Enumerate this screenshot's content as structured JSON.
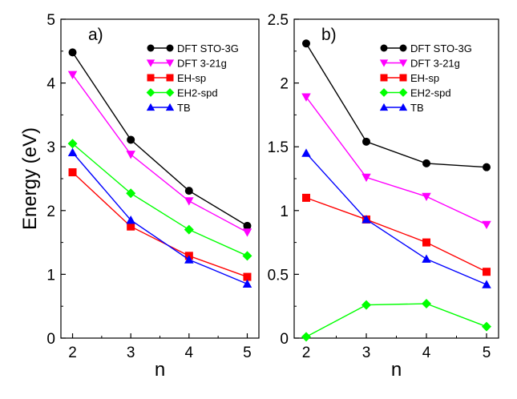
{
  "chart_data": [
    {
      "panel_label": "a)",
      "type": "line",
      "xlabel": "n",
      "ylabel": "Energy (eV)",
      "x": [
        2,
        3,
        4,
        5
      ],
      "xlim": [
        1.8,
        5.2
      ],
      "ylim": [
        0,
        5
      ],
      "yticks": [
        "0",
        "1",
        "2",
        "3",
        "4",
        "5"
      ],
      "xticks": [
        "2",
        "3",
        "4",
        "5"
      ],
      "legend_position": "top-right",
      "series": [
        {
          "name": "DFT STO-3G",
          "color": "#000000",
          "marker": "circle",
          "values": [
            4.48,
            3.11,
            2.31,
            1.76
          ]
        },
        {
          "name": "DFT 3-21g",
          "color": "#ff00ff",
          "marker": "triangle-down",
          "values": [
            4.13,
            2.88,
            2.15,
            1.66
          ]
        },
        {
          "name": "EH-sp",
          "color": "#ff0000",
          "marker": "square",
          "values": [
            2.6,
            1.75,
            1.29,
            0.96
          ]
        },
        {
          "name": "EH2-spd",
          "color": "#00ff00",
          "marker": "diamond",
          "values": [
            3.05,
            2.27,
            1.7,
            1.29
          ]
        },
        {
          "name": "TB",
          "color": "#0000ff",
          "marker": "triangle-up",
          "values": [
            2.91,
            1.85,
            1.23,
            0.85
          ]
        }
      ]
    },
    {
      "panel_label": "b)",
      "type": "line",
      "xlabel": "n",
      "ylabel": "",
      "x": [
        2,
        3,
        4,
        5
      ],
      "xlim": [
        1.8,
        5.2
      ],
      "ylim": [
        0,
        2.5
      ],
      "yticks": [
        "0",
        "0.5",
        "1",
        "1.5",
        "2",
        "2.5"
      ],
      "xticks": [
        "2",
        "3",
        "4",
        "5"
      ],
      "legend_position": "top-right",
      "series": [
        {
          "name": "DFT STO-3G",
          "color": "#000000",
          "marker": "circle",
          "values": [
            2.31,
            1.54,
            1.37,
            1.34
          ]
        },
        {
          "name": "DFT 3-21g",
          "color": "#ff00ff",
          "marker": "triangle-down",
          "values": [
            1.89,
            1.26,
            1.11,
            0.89
          ]
        },
        {
          "name": "EH-sp",
          "color": "#ff0000",
          "marker": "square",
          "values": [
            1.1,
            0.93,
            0.75,
            0.52
          ]
        },
        {
          "name": "EH2-spd",
          "color": "#00ff00",
          "marker": "diamond",
          "values": [
            0.01,
            0.26,
            0.27,
            0.09
          ]
        },
        {
          "name": "TB",
          "color": "#0000ff",
          "marker": "triangle-up",
          "values": [
            1.45,
            0.93,
            0.62,
            0.42
          ]
        }
      ]
    }
  ]
}
